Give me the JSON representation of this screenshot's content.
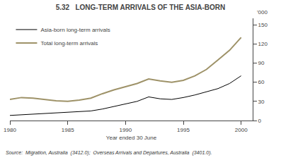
{
  "chart_data": {
    "type": "line",
    "title": "5.32   LONG-TERM ARRIVALS OF THE ASIA-BORN",
    "xlabel": "Year ended 30 June",
    "ylabel": "'000",
    "annotations": [
      "Source:  Migration, Australia  (3412.0);  Overseas Arrivals and Departures, Australia  (3401.0)."
    ],
    "x": [
      1980,
      1981,
      1982,
      1983,
      1984,
      1985,
      1986,
      1987,
      1988,
      1989,
      1990,
      1991,
      1992,
      1993,
      1994,
      1995,
      1996,
      1997,
      1998,
      1999,
      2000
    ],
    "series": [
      {
        "name": "Asia-born long-term arrivals",
        "color": "#000000",
        "values": [
          8,
          9,
          10,
          11,
          12,
          13,
          14,
          15,
          18,
          22,
          26,
          30,
          37,
          34,
          33,
          36,
          40,
          45,
          50,
          58,
          70
        ]
      },
      {
        "name": "Total long-term arrivals",
        "color": "#9e9268",
        "values": [
          33,
          36,
          35,
          33,
          31,
          30,
          32,
          35,
          42,
          48,
          53,
          58,
          65,
          62,
          60,
          63,
          70,
          80,
          95,
          110,
          130
        ]
      }
    ],
    "xlim": [
      1980,
      2001
    ],
    "xticks": [
      1980,
      1985,
      1990,
      1995,
      2000
    ],
    "ylim": [
      0,
      160
    ],
    "yticks": [
      0,
      30,
      60,
      90,
      120,
      150
    ],
    "grid": false,
    "legend": "upper left"
  }
}
